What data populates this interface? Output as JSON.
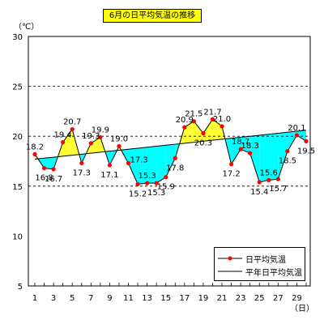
{
  "chart_data": {
    "type": "line",
    "title": "6月の日平均気温の推移",
    "yunit": "（℃）",
    "xunit": "（日）",
    "ylim": [
      5,
      30
    ],
    "yticks": [
      5,
      10,
      15,
      20,
      25,
      30
    ],
    "xlim": [
      1,
      30
    ],
    "xticks": [
      1,
      3,
      5,
      7,
      9,
      11,
      13,
      15,
      17,
      19,
      21,
      23,
      25,
      27,
      29
    ],
    "grid": "dashed horizontal at 15, 20, 25",
    "legend_position": "bottom-right",
    "fill_above_color": "#ffff33",
    "fill_below_color": "#00ffff",
    "series": [
      {
        "name": "日平均気温",
        "color": "#ff0000",
        "line_color": "#000000",
        "marker": "circle",
        "x": [
          1,
          2,
          3,
          4,
          5,
          6,
          7,
          8,
          9,
          10,
          11,
          12,
          13,
          14,
          15,
          16,
          17,
          18,
          19,
          20,
          21,
          22,
          23,
          24,
          25,
          26,
          27,
          28,
          29,
          30
        ],
        "values": [
          18.2,
          16.8,
          16.7,
          19.4,
          20.7,
          17.3,
          19.3,
          19.9,
          17.1,
          19.0,
          17.3,
          15.2,
          15.3,
          15.3,
          15.9,
          17.8,
          20.9,
          21.5,
          20.3,
          21.7,
          21.0,
          17.2,
          18.7,
          18.3,
          15.4,
          15.6,
          15.7,
          18.5,
          20.1,
          19.5
        ]
      },
      {
        "name": "平年日平均気温",
        "color": "#000000",
        "x": [
          1,
          2,
          3,
          4,
          5,
          6,
          7,
          8,
          9,
          10,
          11,
          12,
          13,
          14,
          15,
          16,
          17,
          18,
          19,
          20,
          21,
          22,
          23,
          24,
          25,
          26,
          27,
          28,
          29,
          30
        ],
        "values": [
          17.7,
          17.8,
          17.9,
          18.0,
          18.1,
          18.2,
          18.3,
          18.4,
          18.5,
          18.6,
          18.7,
          18.8,
          18.9,
          19.0,
          19.1,
          19.2,
          19.3,
          19.4,
          19.5,
          19.6,
          19.7,
          19.8,
          19.9,
          20.0,
          20.1,
          20.2,
          20.3,
          20.4,
          20.5,
          20.6
        ]
      }
    ],
    "data_labels": [
      {
        "x": 1,
        "text": "18.2",
        "pos": "above"
      },
      {
        "x": 2,
        "text": "16.8",
        "pos": "below"
      },
      {
        "x": 3,
        "text": "16.7",
        "pos": "below"
      },
      {
        "x": 4,
        "text": "19.4",
        "pos": "above"
      },
      {
        "x": 5,
        "text": "20.7",
        "pos": "above"
      },
      {
        "x": 6,
        "text": "17.3",
        "pos": "below"
      },
      {
        "x": 7,
        "text": "19.3",
        "pos": "above"
      },
      {
        "x": 8,
        "text": "19.9",
        "pos": "above"
      },
      {
        "x": 9,
        "text": "17.1",
        "pos": "below"
      },
      {
        "x": 10,
        "text": "19.0",
        "pos": "above"
      },
      {
        "x": 11,
        "text": "17.3",
        "pos": "right"
      },
      {
        "x": 12,
        "text": "15.2",
        "pos": "below"
      },
      {
        "x": 13,
        "text": "15.3",
        "pos": "above"
      },
      {
        "x": 14,
        "text": "15.3",
        "pos": "below"
      },
      {
        "x": 15,
        "text": "15.9",
        "pos": "below"
      },
      {
        "x": 16,
        "text": "17.8",
        "pos": "below"
      },
      {
        "x": 17,
        "text": "20.9",
        "pos": "above"
      },
      {
        "x": 18,
        "text": "21.5",
        "pos": "above"
      },
      {
        "x": 19,
        "text": "20.3",
        "pos": "below"
      },
      {
        "x": 20,
        "text": "21.7",
        "pos": "above"
      },
      {
        "x": 21,
        "text": "21.0",
        "pos": "above"
      },
      {
        "x": 22,
        "text": "17.2",
        "pos": "below"
      },
      {
        "x": 23,
        "text": "18.7",
        "pos": "above"
      },
      {
        "x": 24,
        "text": "18.3",
        "pos": "above"
      },
      {
        "x": 25,
        "text": "15.4",
        "pos": "below"
      },
      {
        "x": 26,
        "text": "15.6",
        "pos": "above"
      },
      {
        "x": 27,
        "text": "15.7",
        "pos": "below"
      },
      {
        "x": 28,
        "text": "18.5",
        "pos": "below"
      },
      {
        "x": 29,
        "text": "20.1",
        "pos": "above"
      },
      {
        "x": 30,
        "text": "19.5",
        "pos": "below"
      }
    ]
  }
}
